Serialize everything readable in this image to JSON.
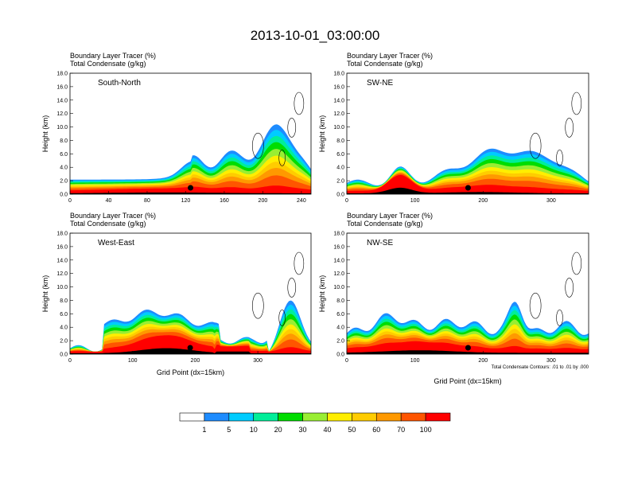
{
  "page_title": "2013-10-01_03:00:00",
  "colors": {
    "levels": [
      "#ffffff",
      "#1e8cff",
      "#00ccff",
      "#00ee99",
      "#00dd00",
      "#99ee33",
      "#ffee00",
      "#ffcc00",
      "#ff9900",
      "#ff5500",
      "#ff0000"
    ]
  },
  "colorbar": {
    "labels": [
      "1",
      "5",
      "10",
      "20",
      "30",
      "40",
      "50",
      "60",
      "70",
      "100"
    ]
  },
  "chart_data": [
    {
      "type": "heatmap",
      "subtitle_line1": "Boundary Layer Tracer   (%)",
      "subtitle_line2": "Total Condensate   (g/kg)",
      "label": "South-North",
      "ylabel": "Height (km)",
      "xlabel": "",
      "xlim": [
        0,
        250
      ],
      "ylim": [
        0,
        18
      ],
      "xticks": [
        "0",
        "40",
        "80",
        "120",
        "160",
        "200",
        "240"
      ],
      "yticks": [
        "0.0",
        "2.0",
        "4.0",
        "6.0",
        "8.0",
        "10.0",
        "12.0",
        "14.0",
        "16.0",
        "18.0"
      ],
      "marker_x": 125
    },
    {
      "type": "heatmap",
      "subtitle_line1": "Boundary Layer Tracer   (%)",
      "subtitle_line2": "Total Condensate   (g/kg)",
      "label": "SW-NE",
      "ylabel": "Height (km)",
      "xlabel": "",
      "xlim": [
        0,
        355
      ],
      "ylim": [
        0,
        18
      ],
      "xticks": [
        "0",
        "100",
        "200",
        "300"
      ],
      "yticks": [
        "0.0",
        "2.0",
        "4.0",
        "6.0",
        "8.0",
        "10.0",
        "12.0",
        "14.0",
        "16.0",
        "18.0"
      ],
      "marker_x": 178
    },
    {
      "type": "heatmap",
      "subtitle_line1": "Boundary Layer Tracer   (%)",
      "subtitle_line2": "Total Condensate   (g/kg)",
      "label": "West-East",
      "ylabel": "Height (km)",
      "xlabel": "Grid Point (dx=15km)",
      "xlim": [
        0,
        385
      ],
      "ylim": [
        0,
        18
      ],
      "xticks": [
        "0",
        "100",
        "200",
        "300"
      ],
      "yticks": [
        "0.0",
        "2.0",
        "4.0",
        "6.0",
        "8.0",
        "10.0",
        "12.0",
        "14.0",
        "16.0",
        "18.0"
      ],
      "marker_x": 192
    },
    {
      "type": "heatmap",
      "subtitle_line1": "Boundary Layer Tracer   (%)",
      "subtitle_line2": "Total Condensate   (g/kg)",
      "label": "NW-SE",
      "ylabel": "Height (km)",
      "xlabel": "Grid Point (dx=15km)",
      "note": "Total Condensate Contours: .01 to .01 by .000",
      "xlim": [
        0,
        355
      ],
      "ylim": [
        0,
        18
      ],
      "xticks": [
        "0",
        "100",
        "200",
        "300"
      ],
      "yticks": [
        "0.0",
        "2.0",
        "4.0",
        "6.0",
        "8.0",
        "10.0",
        "12.0",
        "14.0",
        "16.0",
        "18.0"
      ],
      "marker_x": 178
    }
  ]
}
